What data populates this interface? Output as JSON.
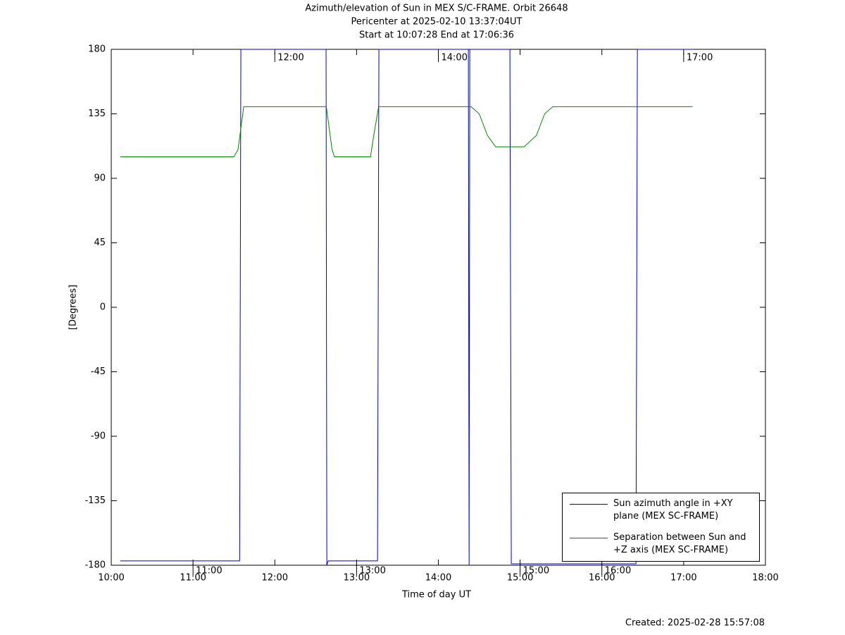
{
  "chart_data": {
    "type": "line",
    "title": "Azimuth/elevation of Sun in MEX S/C-FRAME.  Orbit 26648",
    "subtitle": [
      "Pericenter at 2025-02-10 13:37:04UT",
      "Start at 10:07:28 End at 17:06:36"
    ],
    "xlabel": "Time of day UT",
    "ylabel": "[Degrees]",
    "created": "Created: 2025-02-28 15:57:08",
    "xlim": [
      10,
      18
    ],
    "xticks": [
      {
        "value": 10,
        "label": "10:00"
      },
      {
        "value": 11,
        "label": "11:00"
      },
      {
        "value": 12,
        "label": "12:00"
      },
      {
        "value": 13,
        "label": "13:00"
      },
      {
        "value": 14,
        "label": "14:00"
      },
      {
        "value": 15,
        "label": "15:00"
      },
      {
        "value": 16,
        "label": "16:00"
      },
      {
        "value": 17,
        "label": "17:00"
      },
      {
        "value": 18,
        "label": "18:00"
      }
    ],
    "ylim": [
      -180,
      180
    ],
    "yticks": [
      180,
      135,
      90,
      45,
      0,
      -45,
      -90,
      -135,
      -180
    ],
    "legend": "lower right",
    "series": [
      {
        "name": "Sun azimuth angle in +XY plane (MEX SC-FRAME)",
        "color": "#0000cc",
        "x": [
          10.11,
          11.57,
          11.585,
          12.627,
          12.636,
          12.653,
          13.256,
          13.273,
          14.367,
          14.376,
          14.385,
          14.875,
          14.892,
          16.417,
          16.434,
          17.11
        ],
        "values": [
          -177,
          -177,
          180,
          180,
          -180,
          -177,
          -177,
          180,
          180,
          -180,
          180,
          180,
          -179,
          -179,
          180,
          180
        ]
      },
      {
        "name": "Separation between Sun and +Z axis (MEX SC-FRAME)",
        "color": "#008800",
        "x": [
          10.11,
          11.5,
          11.55,
          11.62,
          12.63,
          12.7,
          12.73,
          13.17,
          13.21,
          13.27,
          14.4,
          14.5,
          14.6,
          14.7,
          15.05,
          15.2,
          15.3,
          15.4,
          17.11
        ],
        "values": [
          105,
          105,
          110,
          140,
          140,
          110,
          105,
          105,
          120,
          140,
          140,
          135,
          120,
          112,
          112,
          120,
          135,
          140,
          140
        ]
      }
    ],
    "annotations": [
      {
        "label": "11:00",
        "x": 11,
        "y": -180
      },
      {
        "label": "12:00",
        "x": 12,
        "y": 180
      },
      {
        "label": "13:00",
        "x": 13,
        "y": -180
      },
      {
        "label": "14:00",
        "x": 14,
        "y": 180
      },
      {
        "label": "15:00",
        "x": 15,
        "y": -180
      },
      {
        "label": "16:00",
        "x": 16,
        "y": -180
      },
      {
        "label": "17:00",
        "x": 17,
        "y": 180
      }
    ]
  }
}
